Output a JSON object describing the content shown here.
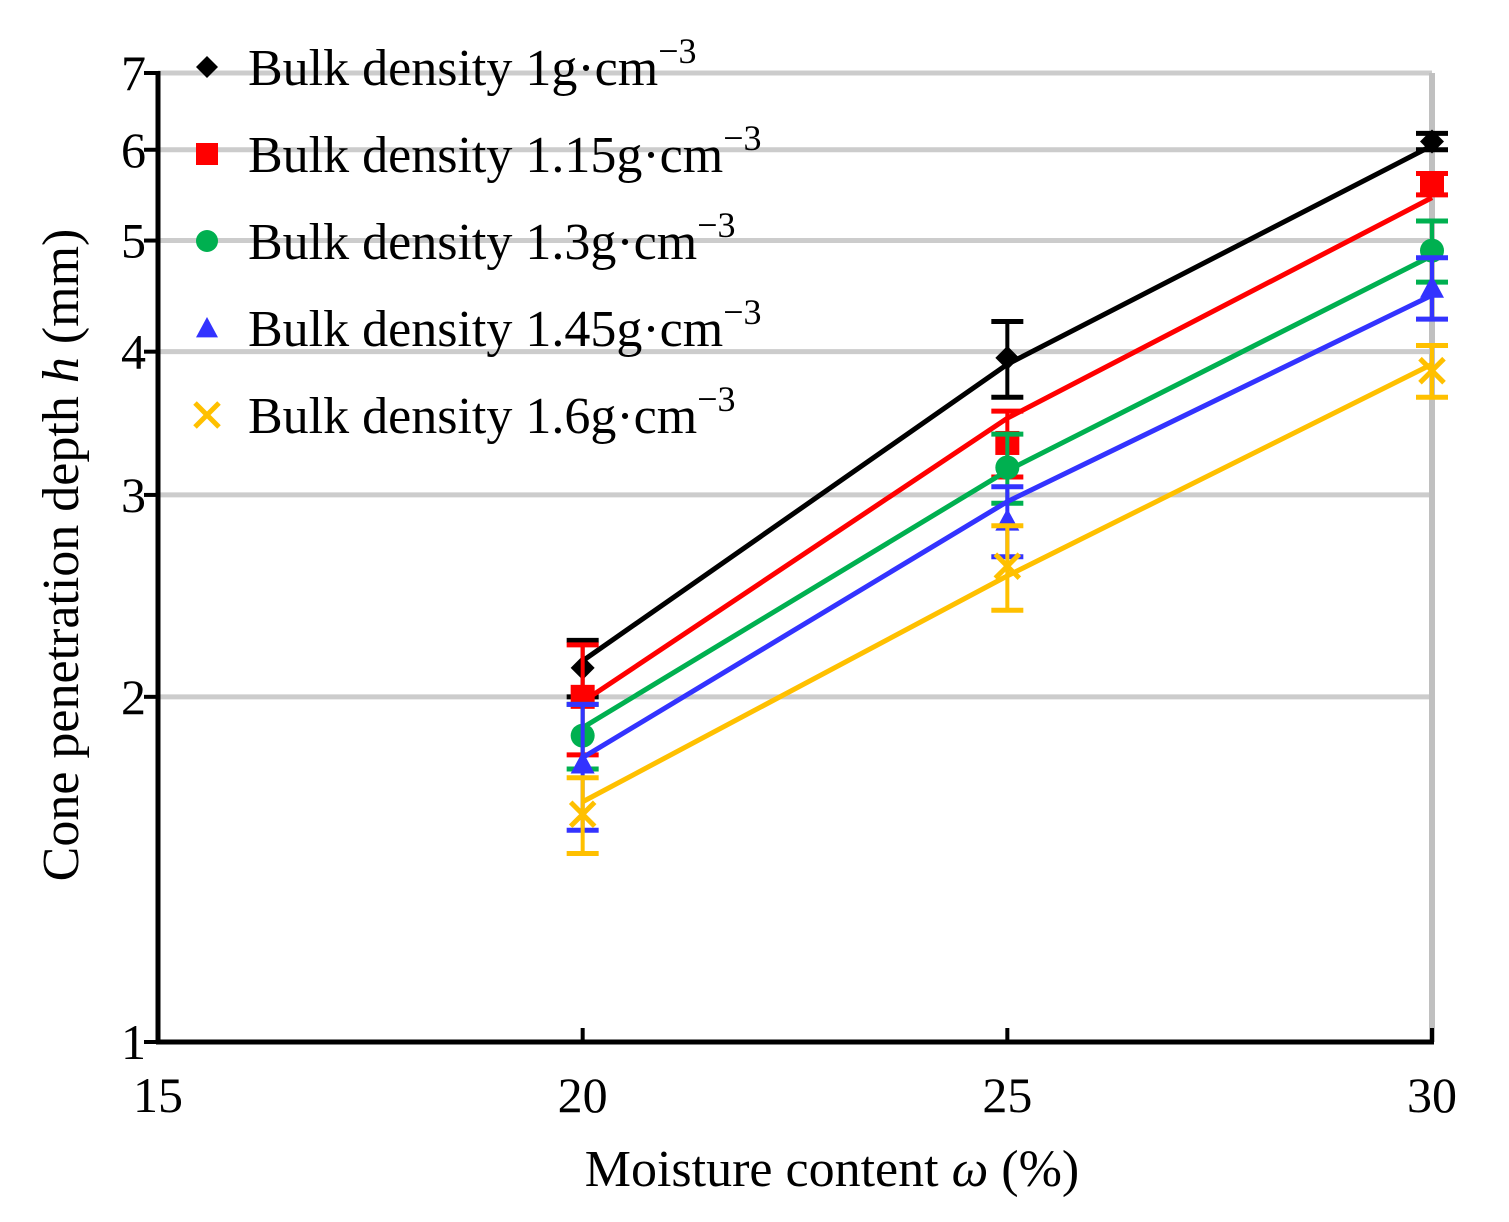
{
  "chart_data": {
    "type": "line",
    "title": "",
    "xlabel": "Moisture content ω (%)",
    "xlabel_parts": {
      "main": "Moisture content ",
      "symbol": "ω",
      "unit": " (%)"
    },
    "ylabel": "Cone penetration depth h (mm)",
    "ylabel_parts": {
      "main": "Cone penetration depth ",
      "symbol": "h",
      "unit": " (mm)"
    },
    "x_scale": "linear",
    "y_scale": "log",
    "xlim": [
      15,
      30
    ],
    "ylim": [
      1,
      7
    ],
    "x_ticks": [
      15,
      20,
      25,
      30
    ],
    "x_tick_labels": [
      "15",
      "20",
      "25",
      "30"
    ],
    "y_ticks": [
      1,
      2,
      3,
      4,
      5,
      6,
      7
    ],
    "y_tick_labels": [
      "1",
      "2",
      "3",
      "4",
      "5",
      "6",
      "7"
    ],
    "grid": "horizontal",
    "legend_position": "top-left",
    "x": [
      20,
      25,
      30
    ],
    "series": [
      {
        "name": "Bulk density 1g·cm⁻³",
        "legend_main": "Bulk density 1g·cm",
        "legend_sup": "−3",
        "color": "#000000",
        "marker": "diamond",
        "values": [
          2.12,
          3.95,
          6.1
        ],
        "errors": [
          0.12,
          0.3,
          0.1
        ],
        "fit": [
          2.15,
          3.9,
          6.05
        ]
      },
      {
        "name": "Bulk density 1.15g·cm⁻³",
        "legend_main": "Bulk density 1.15g·cm",
        "legend_sup": "−3",
        "color": "#ff0000",
        "marker": "square",
        "values": [
          2.0,
          3.33,
          5.6
        ],
        "errors": [
          0.22,
          0.22,
          0.12
        ],
        "fit": [
          1.98,
          3.5,
          5.45
        ]
      },
      {
        "name": "Bulk density 1.3g·cm⁻³",
        "legend_main": "Bulk density 1.3g·cm",
        "legend_sup": "−3",
        "color": "#00b050",
        "marker": "circle",
        "values": [
          1.85,
          3.17,
          4.9
        ],
        "errors": [
          0.12,
          0.22,
          0.3
        ],
        "fit": [
          1.88,
          3.15,
          4.85
        ]
      },
      {
        "name": "Bulk density 1.45g·cm⁻³",
        "legend_main": "Bulk density 1.45g·cm",
        "legend_sup": "−3",
        "color": "#3333ff",
        "marker": "triangle",
        "values": [
          1.75,
          2.85,
          4.55
        ],
        "errors": [
          0.22,
          0.2,
          0.28
        ],
        "fit": [
          1.77,
          2.96,
          4.48
        ]
      },
      {
        "name": "Bulk density 1.6g·cm⁻³",
        "legend_main": "Bulk density 1.6g·cm",
        "legend_sup": "−3",
        "color": "#ffc000",
        "marker": "x",
        "values": [
          1.58,
          2.6,
          3.85
        ],
        "errors": [
          0.12,
          0.22,
          0.2
        ],
        "fit": [
          1.62,
          2.55,
          3.9
        ]
      }
    ]
  }
}
